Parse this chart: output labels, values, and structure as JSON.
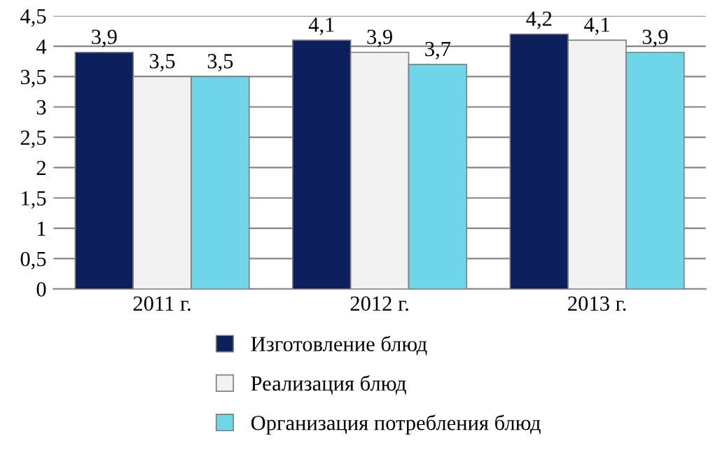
{
  "chart_data": {
    "type": "bar",
    "categories": [
      "2011 г.",
      "2012 г.",
      "2013 г."
    ],
    "series": [
      {
        "name": "Изготовление блюд",
        "color": "#0d1f5c",
        "values": [
          3.9,
          4.1,
          4.2
        ],
        "value_labels": [
          "3,9",
          "4,1",
          "4,2"
        ]
      },
      {
        "name": "Реализация блюд",
        "color": "#f2f2f2",
        "values": [
          3.5,
          3.9,
          4.1
        ],
        "value_labels": [
          "3,5",
          "3,9",
          "4,1"
        ]
      },
      {
        "name": "Организация потребления блюд",
        "color": "#6fd6ea",
        "values": [
          3.5,
          3.7,
          3.9
        ],
        "value_labels": [
          "3,5",
          "3,7",
          "3,9"
        ]
      }
    ],
    "ylim": [
      0,
      4.5
    ],
    "yticks": [
      0,
      {
        "value": 0.5,
        "label": "0,5"
      },
      1,
      {
        "value": 1.5,
        "label": "1,5"
      },
      2,
      {
        "value": 2.5,
        "label": "2,5"
      },
      3,
      {
        "value": 3.5,
        "label": "3,5"
      },
      4,
      {
        "value": 4.5,
        "label": "4,5"
      }
    ],
    "grid": "y",
    "legend": "bottom"
  }
}
